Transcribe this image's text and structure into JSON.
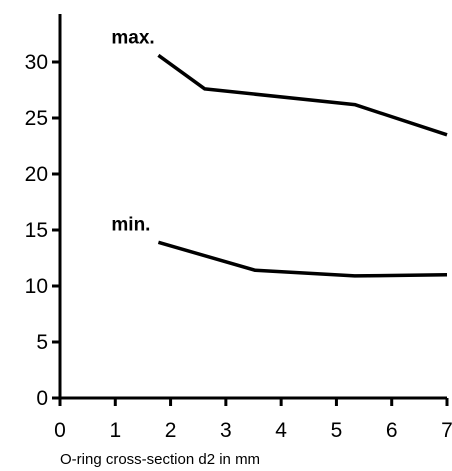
{
  "chart_data": {
    "type": "line",
    "xlabel": "O-ring cross-section d2 in mm",
    "ylabel": "",
    "xlim": [
      0,
      7
    ],
    "ylim": [
      0,
      34
    ],
    "x_ticks": [
      0,
      1,
      2,
      3,
      4,
      5,
      6,
      7
    ],
    "y_ticks": [
      0,
      5,
      10,
      15,
      20,
      25,
      30
    ],
    "grid": false,
    "series": [
      {
        "name": "max.",
        "x": [
          1.78,
          2.62,
          5.33,
          7.0
        ],
        "y": [
          30.6,
          27.6,
          26.2,
          23.5
        ]
      },
      {
        "name": "min.",
        "x": [
          1.78,
          3.53,
          5.33,
          7.0
        ],
        "y": [
          13.9,
          11.4,
          10.9,
          11.0
        ]
      }
    ]
  }
}
